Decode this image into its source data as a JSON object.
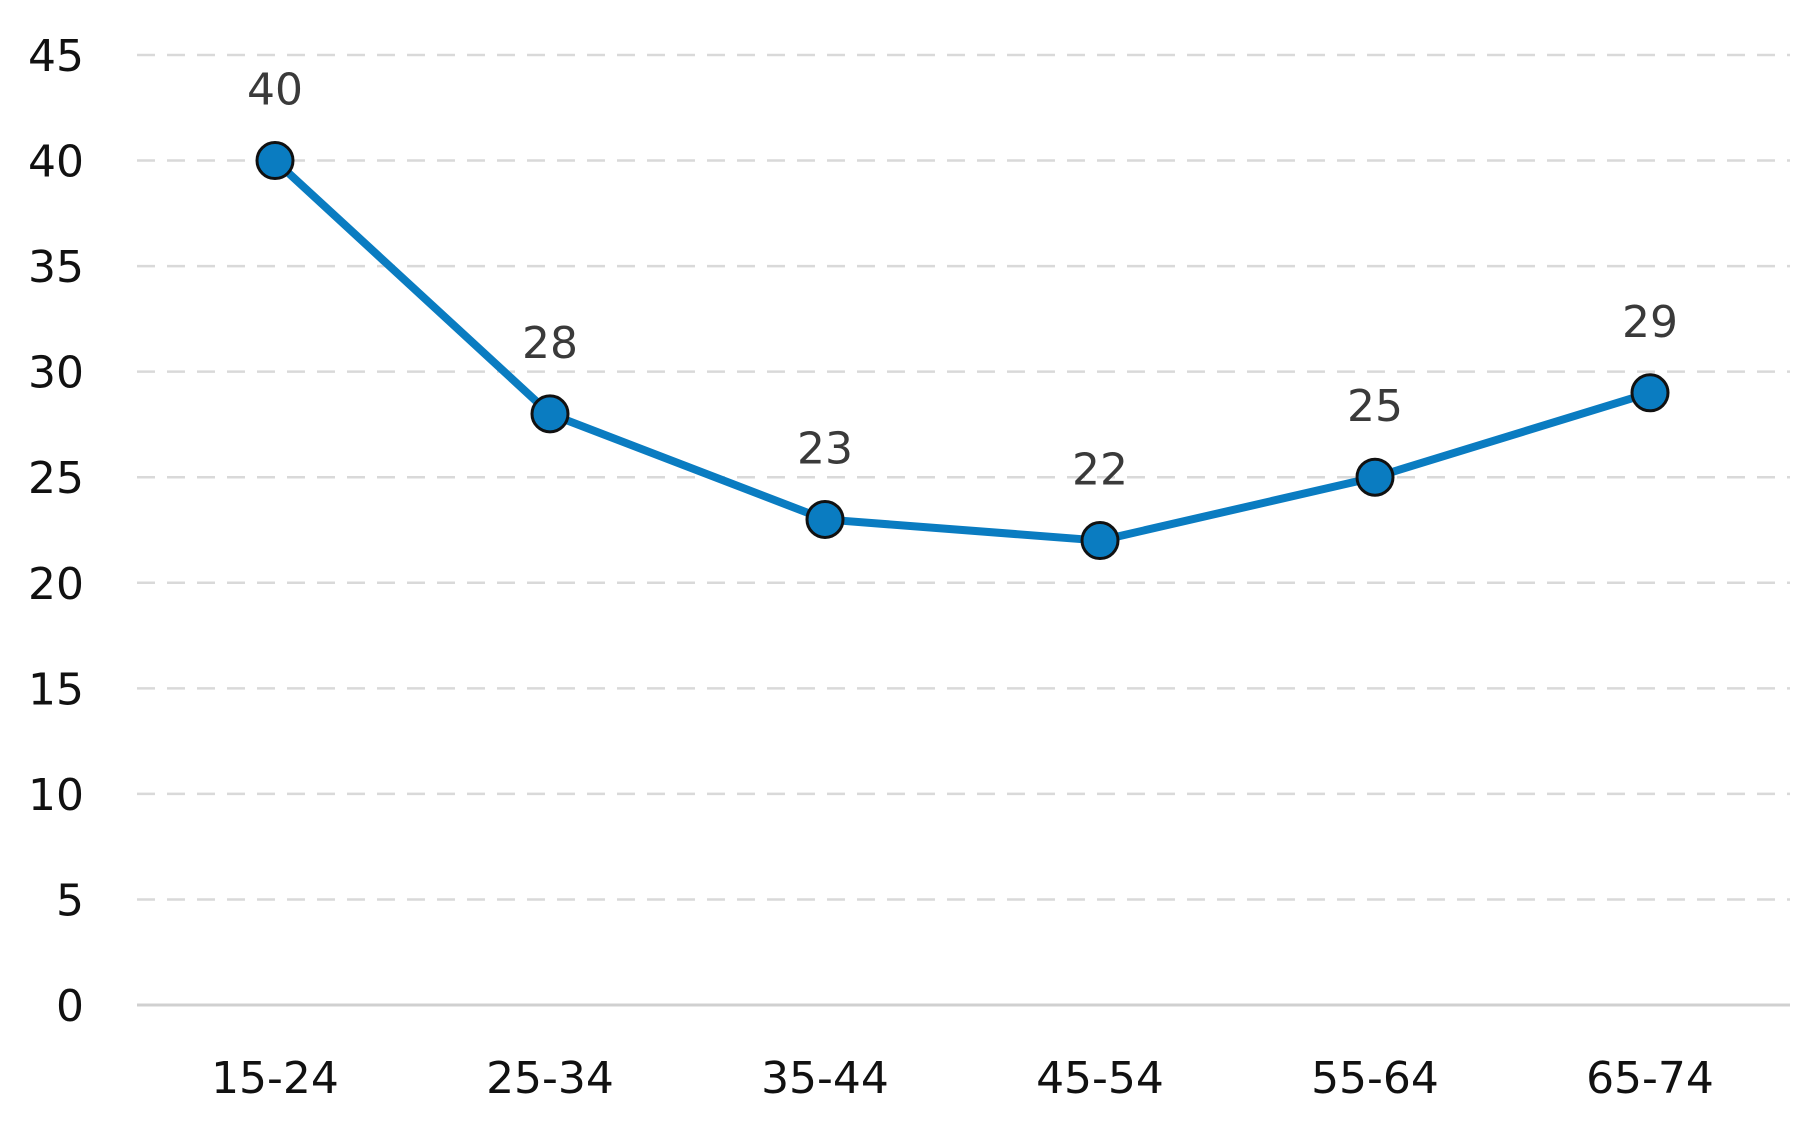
{
  "chart_data": {
    "type": "line",
    "title": "",
    "xlabel": "",
    "ylabel": "",
    "categories": [
      "15-24",
      "25-34",
      "35-44",
      "45-54",
      "55-64",
      "65-74"
    ],
    "series": [
      {
        "values": [
          40,
          28,
          23,
          22,
          25,
          29
        ],
        "data_labels": [
          "40",
          "28",
          "23",
          "22",
          "25",
          "29"
        ]
      }
    ],
    "ylim": [
      0,
      45
    ],
    "yticks": [
      0,
      5,
      10,
      15,
      20,
      25,
      30,
      35,
      40,
      45
    ],
    "grid": true,
    "grid_style": "dashed",
    "legend": "none",
    "colors": {
      "line": "#0A7CC1",
      "marker_fill": "#0A7CC1",
      "marker_edge": "#111111",
      "grid": "#D9D9D9",
      "axis": "#D0D0D0"
    }
  }
}
